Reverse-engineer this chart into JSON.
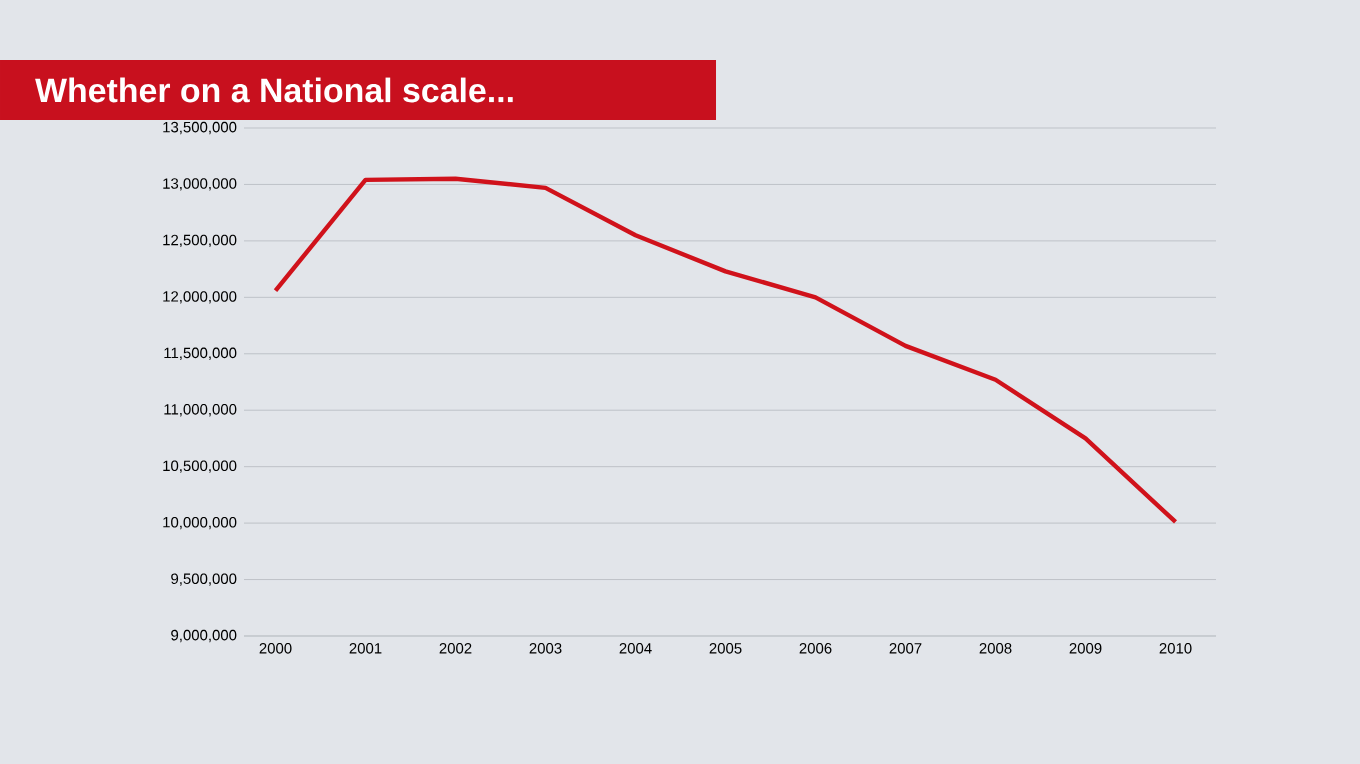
{
  "chart_data": {
    "type": "line",
    "title": "Whether on a National scale...",
    "categories": [
      "2000",
      "2001",
      "2002",
      "2003",
      "2004",
      "2005",
      "2006",
      "2007",
      "2008",
      "2009",
      "2010"
    ],
    "series": [
      {
        "color": "#d0121b",
        "values": [
          12060000,
          13040000,
          13050000,
          12970000,
          12550000,
          12230000,
          12000000,
          11570000,
          11270000,
          10750000,
          10010000
        ]
      }
    ],
    "ylim": [
      9000000,
      13500000
    ],
    "yticks": [
      {
        "value": 9000000,
        "label": "9,000,000"
      },
      {
        "value": 9500000,
        "label": "9,500,000"
      },
      {
        "value": 10000000,
        "label": "10,000,000"
      },
      {
        "value": 10500000,
        "label": "10,500,000"
      },
      {
        "value": 11000000,
        "label": "11,000,000"
      },
      {
        "value": 11500000,
        "label": "11,500,000"
      },
      {
        "value": 12000000,
        "label": "12,000,000"
      },
      {
        "value": 12500000,
        "label": "12,500,000"
      },
      {
        "value": 13000000,
        "label": "13,000,000"
      },
      {
        "value": 13500000,
        "label": "13,500,000"
      }
    ],
    "grid": "y",
    "marker": "none",
    "line_style": "solid"
  }
}
